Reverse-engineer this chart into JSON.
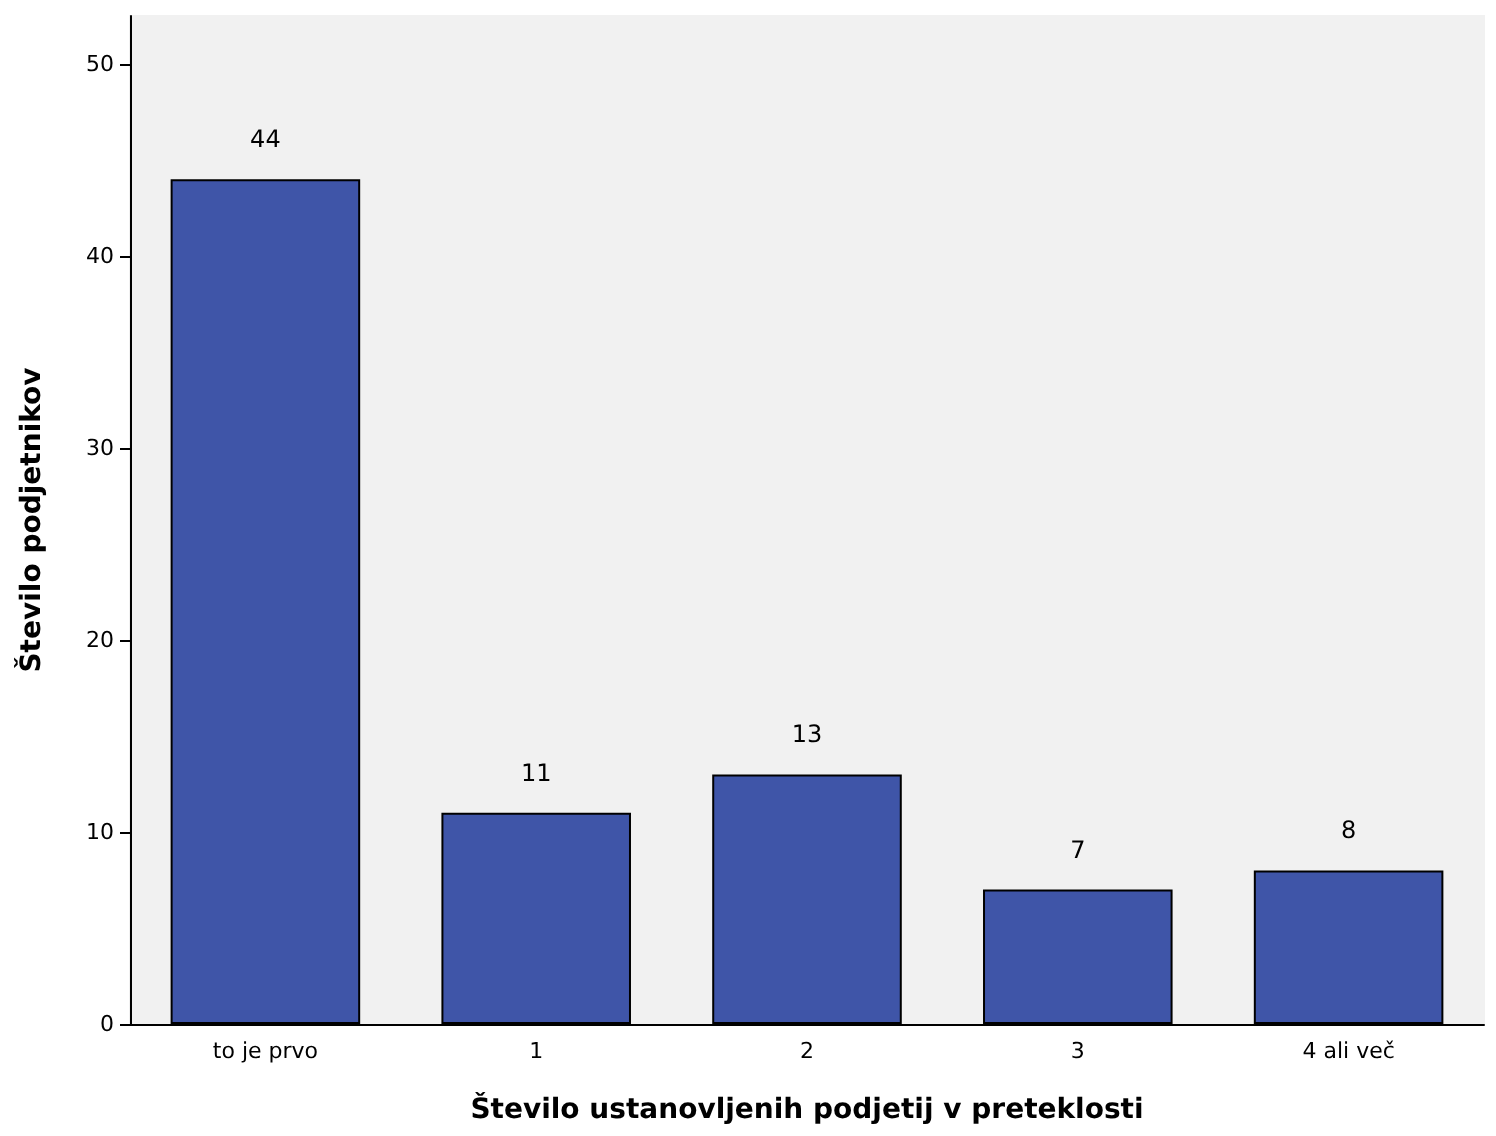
{
  "chart_data": {
    "type": "bar",
    "xlabel": "Število ustanovljenih podjetij v preteklosti",
    "ylabel": "Število podjetnikov",
    "categories": [
      "to je prvo",
      "1",
      "2",
      "3",
      "4 ali več"
    ],
    "values": [
      44,
      11,
      13,
      7,
      8
    ],
    "color": "#3f55a8",
    "ylim": [
      0,
      52.5
    ],
    "yticks": [
      0,
      10,
      20,
      30,
      40,
      50
    ],
    "grid": false,
    "data_labels": true
  }
}
